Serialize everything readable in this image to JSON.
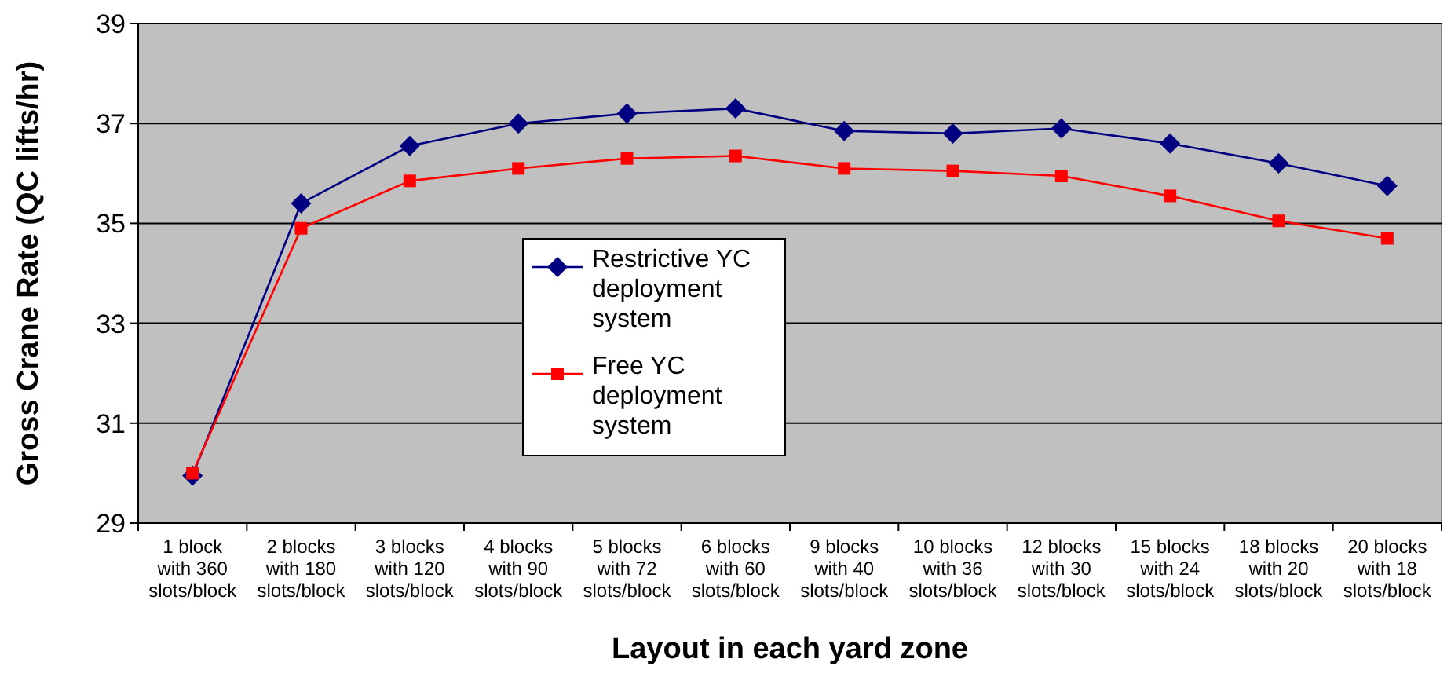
{
  "chart_data": {
    "type": "line",
    "xlabel": "Layout in each yard zone",
    "ylabel": "Gross Crane Rate (QC lifts/hr)",
    "categories": [
      "1 block with 360 slots/block",
      "2 blocks with 180 slots/block",
      "3 blocks with 120 slots/block",
      "4 blocks with 90 slots/block",
      "5 blocks with 72 slots/block",
      "6 blocks with 60 slots/block",
      "9 blocks with 40 slots/block",
      "10 blocks with 36 slots/block",
      "12 blocks with 30 slots/block",
      "15 blocks with 24 slots/block",
      "18 blocks with 20 slots/block",
      "20 blocks with 18 slots/block"
    ],
    "series": [
      {
        "name": "Restrictive YC deployment system",
        "color": "#000080",
        "marker": "diamond",
        "values": [
          29.95,
          35.4,
          36.55,
          37.0,
          37.2,
          37.3,
          36.85,
          36.8,
          36.9,
          36.6,
          36.2,
          35.75
        ]
      },
      {
        "name": "Free YC deployment system",
        "color": "#ff0000",
        "marker": "square",
        "values": [
          30.0,
          34.9,
          35.85,
          36.1,
          36.3,
          36.35,
          36.1,
          36.05,
          35.95,
          35.55,
          35.05,
          34.7
        ]
      }
    ],
    "ylim": [
      29,
      39
    ],
    "yticks": [
      29,
      31,
      33,
      35,
      37,
      39
    ],
    "grid": "y",
    "legend": "center"
  }
}
